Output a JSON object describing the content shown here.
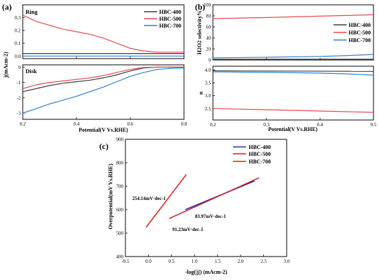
{
  "panels": {
    "a": {
      "label": "(a)",
      "ring_label": "Ring",
      "disk_label": "Disk",
      "xlabel": "Potential(V Vs.RHE)",
      "ylabel": "j(mAcm-2)"
    },
    "b": {
      "label": "(b)",
      "ylabel_top": "H2O2 selectivity%",
      "ylabel_bottom": "n",
      "xlabel": "Potential(V Vs.RHE)"
    },
    "c": {
      "label": "(c)",
      "ylabel": "Overpotential(mV Vs.RHE)",
      "xlabel": "-log(|j|) (mAcm-2)",
      "annotations": [
        "254.14mV·dec-1",
        "83.97mV·dec-1",
        "91.23mV·dec-1"
      ]
    }
  },
  "series_names": [
    "HBC-400",
    "HBC-500",
    "HBC-700"
  ],
  "colors": {
    "HBC-400": "#3a3a3a",
    "HBC-500": "#e8474c",
    "HBC-700": "#2a7fcf",
    "c_HBC-400": "#2b2bb5",
    "c_HBC-500": "#cc1b2b",
    "c_HBC-700": "#e31a1c"
  },
  "chart_data": [
    {
      "type": "line",
      "panel": "a-ring",
      "xlim": [
        0.2,
        0.8
      ],
      "ylim": [
        -0.02,
        0.4
      ],
      "xticks": [
        0.2,
        0.4,
        0.6,
        0.8
      ],
      "yticks": [
        0.0,
        0.1,
        0.2,
        0.3
      ],
      "series": [
        {
          "name": "HBC-400",
          "x": [
            0.2,
            0.8
          ],
          "y": [
            0.02,
            0.02
          ]
        },
        {
          "name": "HBC-500",
          "x": [
            0.2,
            0.25,
            0.3,
            0.35,
            0.4,
            0.45,
            0.5,
            0.55,
            0.6,
            0.65,
            0.7,
            0.8
          ],
          "y": [
            0.32,
            0.27,
            0.24,
            0.21,
            0.19,
            0.17,
            0.14,
            0.1,
            0.06,
            0.04,
            0.03,
            0.03
          ]
        },
        {
          "name": "HBC-700",
          "x": [
            0.2,
            0.8
          ],
          "y": [
            0.0,
            0.0
          ]
        }
      ]
    },
    {
      "type": "line",
      "panel": "a-disk",
      "xlim": [
        0.2,
        0.8
      ],
      "ylim": [
        -3.4,
        0.15
      ],
      "xticks": [
        0.2,
        0.4,
        0.6,
        0.8
      ],
      "yticks": [
        0,
        -1,
        -2,
        -3
      ],
      "series": [
        {
          "name": "HBC-400",
          "x": [
            0.2,
            0.25,
            0.3,
            0.35,
            0.4,
            0.45,
            0.5,
            0.55,
            0.6,
            0.65,
            0.7,
            0.8
          ],
          "y": [
            -1.6,
            -1.4,
            -1.2,
            -1.05,
            -0.95,
            -0.85,
            -0.7,
            -0.5,
            -0.25,
            -0.05,
            0.0,
            0.0
          ]
        },
        {
          "name": "HBC-500",
          "x": [
            0.2,
            0.25,
            0.3,
            0.35,
            0.4,
            0.45,
            0.5,
            0.55,
            0.6,
            0.65,
            0.7,
            0.8
          ],
          "y": [
            -1.4,
            -1.15,
            -1.0,
            -0.9,
            -0.8,
            -0.7,
            -0.55,
            -0.35,
            -0.15,
            -0.02,
            0.0,
            0.0
          ]
        },
        {
          "name": "HBC-700",
          "x": [
            0.2,
            0.25,
            0.3,
            0.35,
            0.4,
            0.45,
            0.5,
            0.55,
            0.6,
            0.65,
            0.7,
            0.75,
            0.8
          ],
          "y": [
            -3.0,
            -2.7,
            -2.4,
            -2.15,
            -1.9,
            -1.6,
            -1.3,
            -0.95,
            -0.6,
            -0.35,
            -0.15,
            -0.08,
            -0.05
          ]
        }
      ]
    },
    {
      "type": "line",
      "panel": "b-top",
      "xlim": [
        0.2,
        0.5
      ],
      "ylim": [
        0,
        100
      ],
      "xticks": [
        0.2,
        0.3,
        0.4,
        0.5
      ],
      "yticks": [
        0,
        20,
        40,
        60,
        80,
        100
      ],
      "series": [
        {
          "name": "HBC-400",
          "x": [
            0.2,
            0.5
          ],
          "y": [
            1.5,
            1.5
          ]
        },
        {
          "name": "HBC-500",
          "x": [
            0.2,
            0.3,
            0.4,
            0.5
          ],
          "y": [
            75,
            77,
            79.5,
            82
          ]
        },
        {
          "name": "HBC-700",
          "x": [
            0.2,
            0.3,
            0.4,
            0.45,
            0.5
          ],
          "y": [
            4,
            5,
            6.5,
            8,
            10
          ]
        }
      ]
    },
    {
      "type": "line",
      "panel": "b-bottom",
      "xlim": [
        0.2,
        0.5
      ],
      "ylim": [
        2.05,
        4.15
      ],
      "xticks": [
        0.2,
        0.3,
        0.4,
        0.5
      ],
      "yticks": [
        2.5,
        3.0,
        3.5,
        4.0
      ],
      "series": [
        {
          "name": "HBC-400",
          "x": [
            0.2,
            0.5
          ],
          "y": [
            3.97,
            3.95
          ]
        },
        {
          "name": "HBC-500",
          "x": [
            0.2,
            0.3,
            0.4,
            0.5
          ],
          "y": [
            2.5,
            2.45,
            2.4,
            2.35
          ]
        },
        {
          "name": "HBC-700",
          "x": [
            0.2,
            0.3,
            0.4,
            0.45,
            0.5
          ],
          "y": [
            3.93,
            3.91,
            3.88,
            3.85,
            3.8
          ]
        }
      ]
    },
    {
      "type": "line",
      "panel": "c",
      "xlim": [
        -0.5,
        3.0
      ],
      "ylim": [
        400,
        900
      ],
      "xticks": [
        -0.5,
        0.0,
        0.5,
        1.0,
        1.5,
        2.0,
        2.5,
        3.0
      ],
      "yticks": [
        400,
        500,
        600,
        700,
        800,
        900
      ],
      "series": [
        {
          "name": "HBC-400",
          "x": [
            0.8,
            2.3
          ],
          "y": [
            600,
            722
          ]
        },
        {
          "name": "HBC-500",
          "x": [
            0.45,
            2.4
          ],
          "y": [
            562,
            736
          ]
        },
        {
          "name": "HBC-700",
          "x": [
            -0.05,
            0.82
          ],
          "y": [
            525,
            750
          ]
        }
      ]
    }
  ]
}
